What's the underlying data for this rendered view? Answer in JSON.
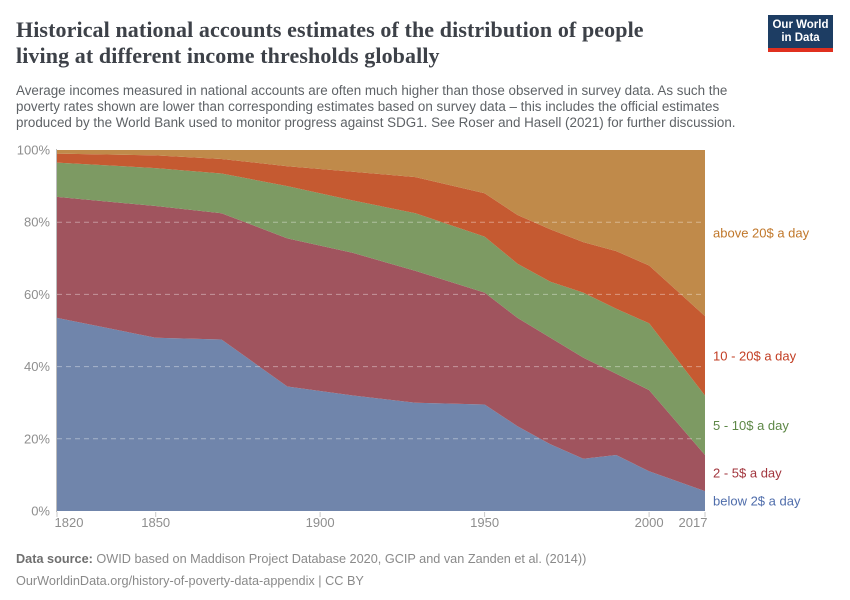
{
  "header": {
    "title_lines": [
      "Historical national accounts estimates of the distribution of people",
      "living at different income thresholds globally"
    ],
    "subtitle_lines": [
      "Average incomes measured in national accounts are often much higher than those observed in survey data. As such the",
      "poverty rates shown are lower than corresponding estimates based on survey data – this includes the official estimates",
      "produced by the World Bank used to monitor progress against SDG1. See Roser and Hasell (2021) for further discussion."
    ],
    "logo": {
      "line1": "Our World",
      "line2": "in Data",
      "bg_color": "#1d3d63",
      "bar_color": "#e0301f",
      "text_color": "#ffffff"
    }
  },
  "chart_data": {
    "type": "area",
    "stacked": true,
    "unit": "%",
    "title": "",
    "xlabel": "",
    "ylabel": "",
    "xlim": [
      1820,
      2017
    ],
    "ylim": [
      0,
      100
    ],
    "grid": "dashed horizontal gridlines at 20/40/60/80%",
    "legend_position": "labels at right edge of plot",
    "x": [
      1820,
      1850,
      1870,
      1890,
      1910,
      1929,
      1950,
      1960,
      1970,
      1980,
      1990,
      2000,
      2017
    ],
    "series": [
      {
        "id": "below-2",
        "label": "below 2$ a day",
        "color": "#7085ab",
        "label_color": "#4f6dab",
        "values": [
          53.5,
          48,
          47.5,
          34.5,
          32,
          30,
          29.5,
          23.5,
          18.5,
          14.5,
          15.5,
          11,
          5.5
        ]
      },
      {
        "id": "2-5",
        "label": "2 - 5$ a day",
        "color": "#a0545e",
        "label_color": "#a2353d",
        "values": [
          33.5,
          36.5,
          35,
          41,
          39.5,
          36.5,
          31,
          30,
          29.5,
          28,
          22.5,
          22.5,
          10
        ]
      },
      {
        "id": "5-10",
        "label": "5 - 10$ a day",
        "color": "#7d9a63",
        "label_color": "#5d8746",
        "values": [
          9.5,
          10.5,
          11,
          14.5,
          14.5,
          16,
          15.5,
          15,
          15.5,
          18,
          18,
          18.5,
          16.5
        ]
      },
      {
        "id": "10-20",
        "label": "10 - 20$ a day",
        "color": "#c55a31",
        "label_color": "#c23d23",
        "values": [
          2.5,
          3.5,
          4,
          5.5,
          8,
          10,
          12,
          13.5,
          14.5,
          14,
          16,
          16,
          22
        ]
      },
      {
        "id": "above-20",
        "label": "above 20$ a day",
        "color": "#c08a4a",
        "label_color": "#c0772a",
        "values": [
          1,
          1.5,
          2.5,
          4.5,
          6,
          7.5,
          12,
          18,
          22,
          25.5,
          28,
          32,
          46
        ]
      }
    ],
    "x_ticks": [
      1820,
      1850,
      1900,
      1950,
      2000,
      2017
    ],
    "y_ticks": [
      "0%",
      "20%",
      "40%",
      "60%",
      "80%",
      "100%"
    ],
    "y_tick_values": [
      0,
      20,
      40,
      60,
      80,
      100
    ]
  },
  "footer": {
    "source_label": "Data source:",
    "source_text": " OWID based on Maddison Project Database 2020, GCIP and van Zanden et al. (2014))",
    "license_line": "OurWorldinData.org/history-of-poverty-data-appendix | CC BY"
  }
}
